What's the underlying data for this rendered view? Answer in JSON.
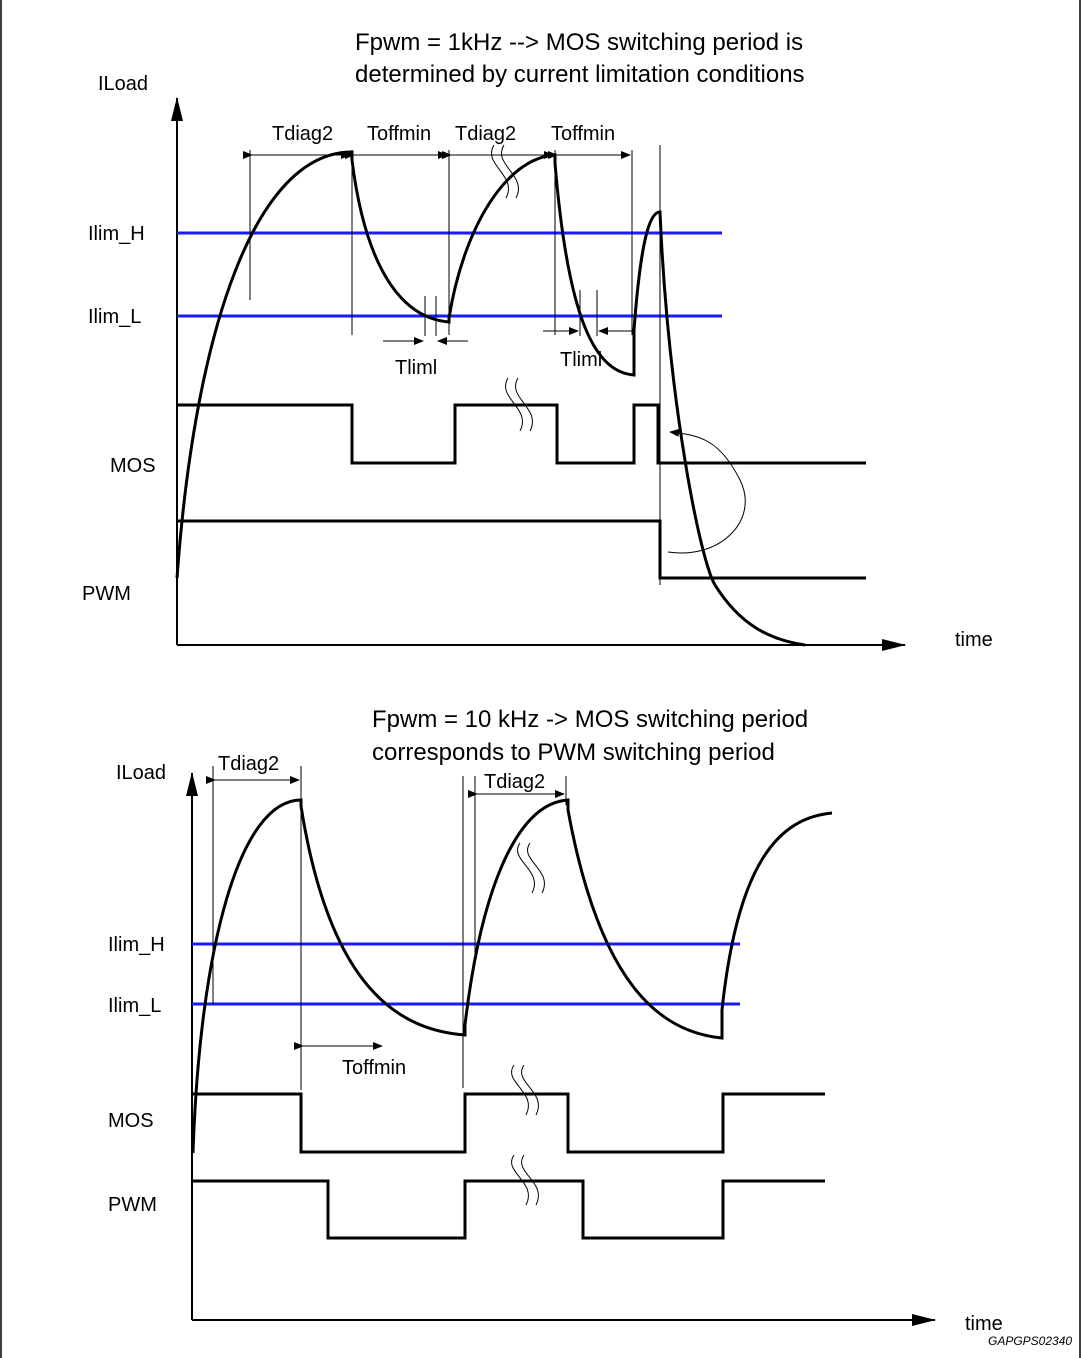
{
  "colors": {
    "limit_line": "#1a1aff",
    "ink": "#000000",
    "background": "#ffffff"
  },
  "top_diagram": {
    "title_line1": "Fpwm = 1kHz --> MOS switching period is",
    "title_line2": "determined by current limitation conditions",
    "y_label": "ILoad",
    "x_label": "time",
    "ilim_h": "Ilim_H",
    "ilim_l": "Ilim_L",
    "mos": "MOS",
    "pwm": "PWM",
    "tdiag2": "Tdiag2",
    "toffmin": "Toffmin",
    "tliml": "Tliml"
  },
  "bottom_diagram": {
    "title_line1": "Fpwm = 10 kHz -> MOS switching period",
    "title_line2": "corresponds to PWM switching period",
    "y_label": "ILoad",
    "x_label": "time",
    "ilim_h": "Ilim_H",
    "ilim_l": "Ilim_L",
    "mos": "MOS",
    "pwm": "PWM",
    "tdiag2": "Tdiag2",
    "toffmin": "Toffmin"
  },
  "reference_code": "GAPGPS02340"
}
